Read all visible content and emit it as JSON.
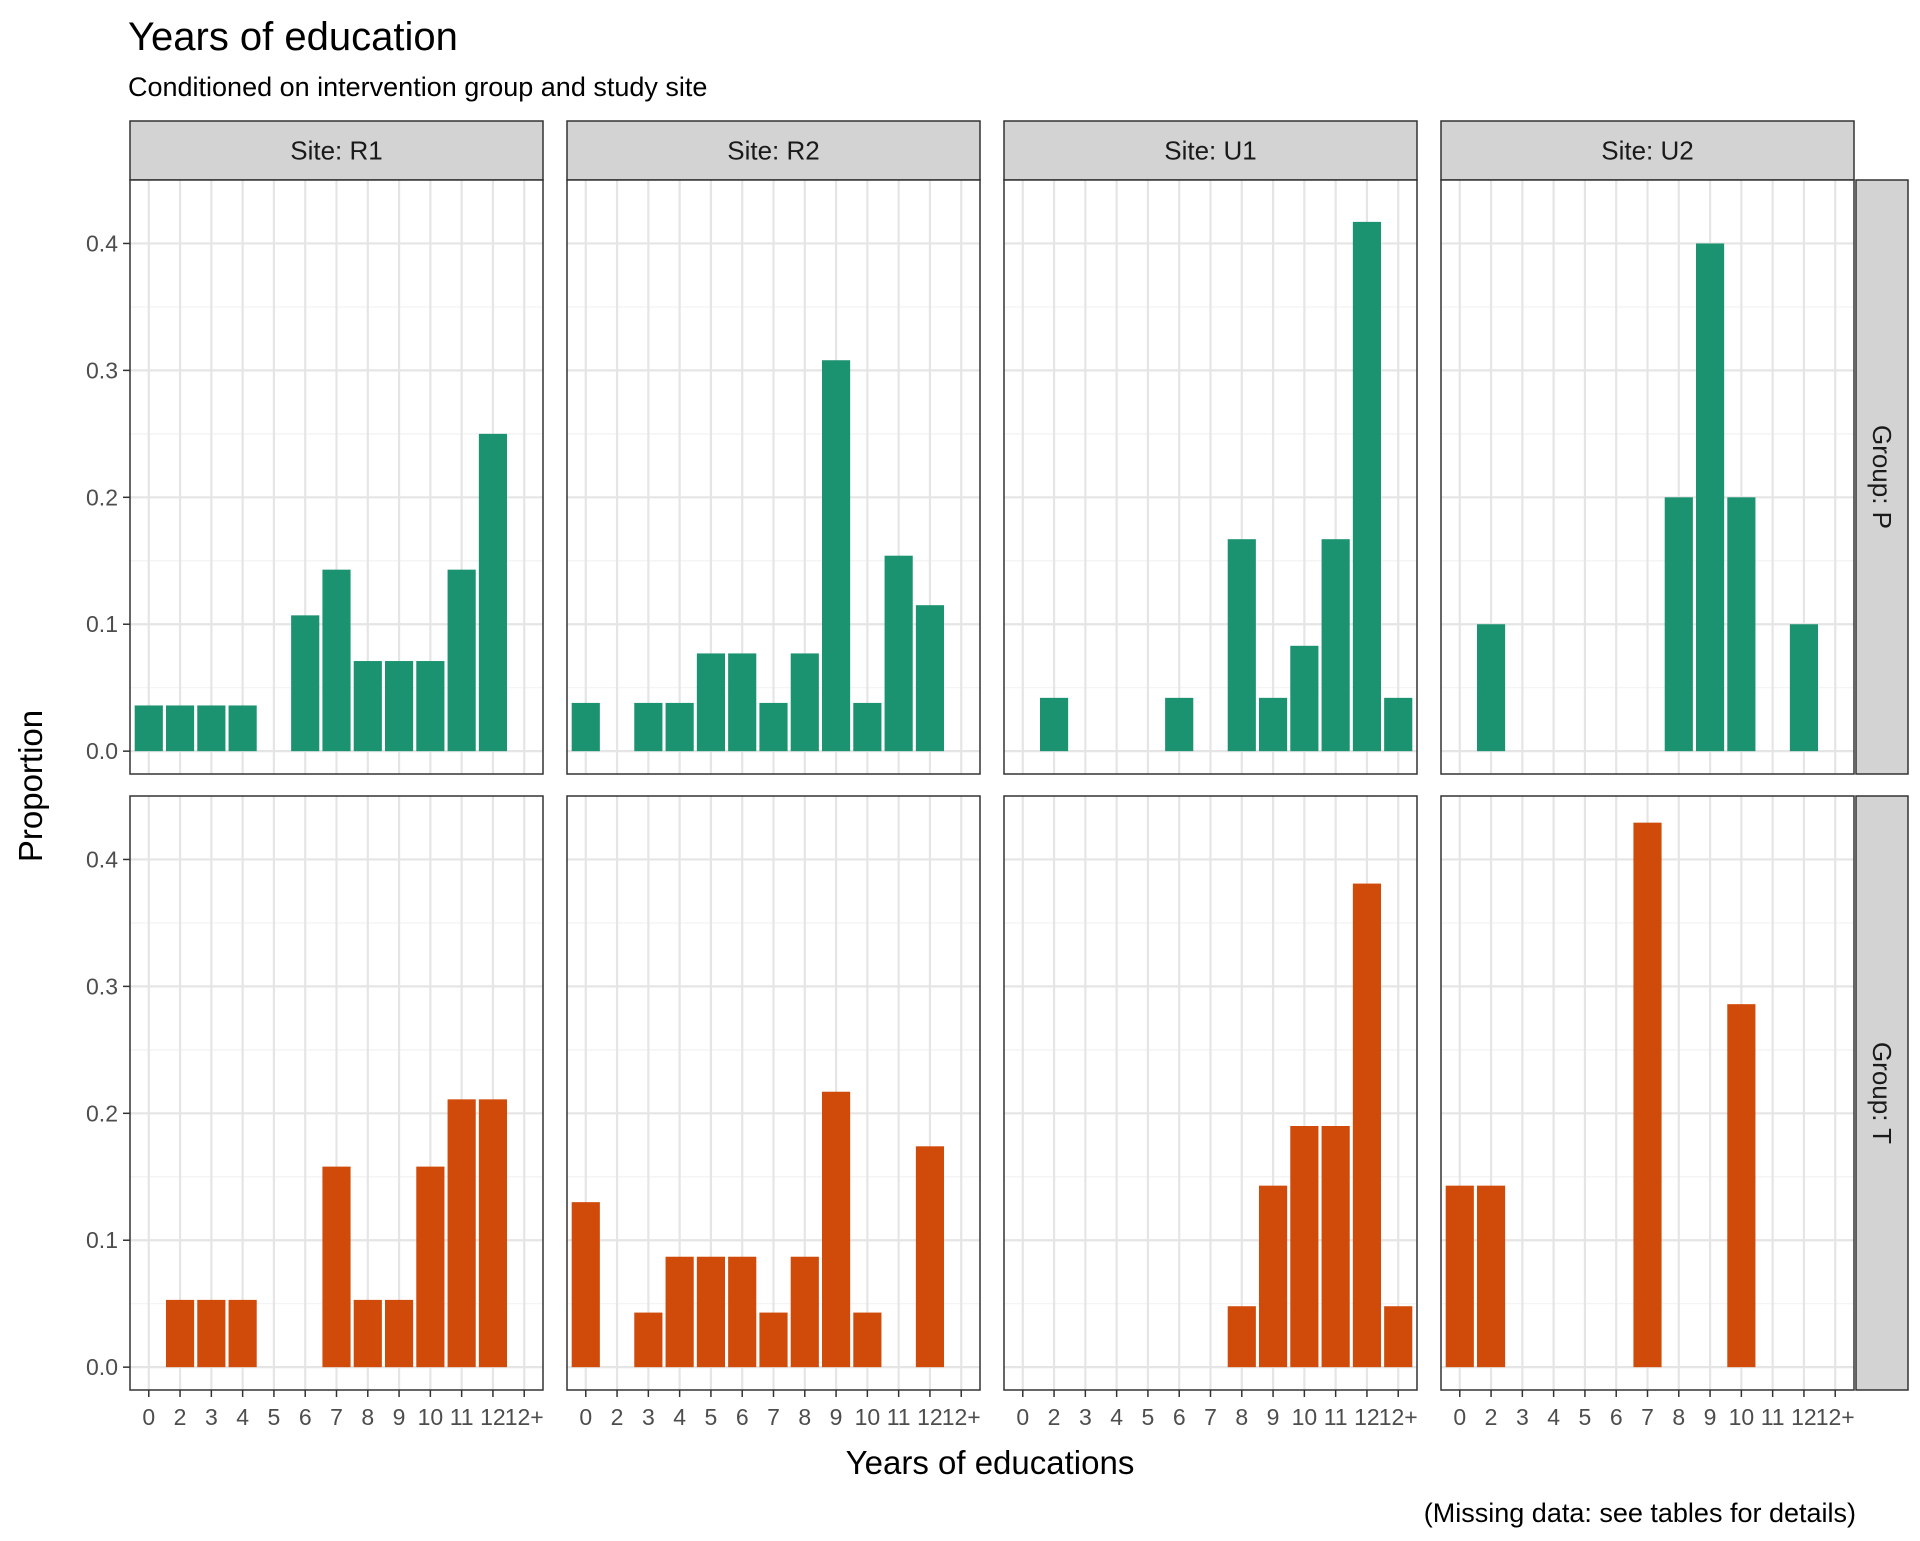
{
  "chart_data": {
    "type": "bar",
    "title": "Years of education",
    "subtitle": "Conditioned on intervention group and study site",
    "xlabel": "Years of educations",
    "ylabel": "Proportion",
    "caption": "(Missing data: see tables for details)",
    "categories": [
      "0",
      "2",
      "3",
      "4",
      "5",
      "6",
      "7",
      "8",
      "9",
      "10",
      "11",
      "12",
      "12+"
    ],
    "ylim": [
      -0.018,
      0.45
    ],
    "yticks": [
      0.0,
      0.1,
      0.2,
      0.3,
      0.4
    ],
    "ytick_labels": [
      "0.0",
      "0.1",
      "0.2",
      "0.3",
      "0.4"
    ],
    "grid": true,
    "theme": "black-and-white",
    "colors": {
      "P": "#1b9370",
      "T": "#d04a0a",
      "strip": "#d3d3d3",
      "grid_major": "#e5e5e5",
      "grid_minor": "#f2f2f2",
      "panel_border": "#333333"
    },
    "col_facets": [
      "Site: R1",
      "Site: R2",
      "Site: U1",
      "Site: U2"
    ],
    "row_facets": [
      "Group: P",
      "Group: T"
    ],
    "panels": [
      {
        "site": "Site: R1",
        "group": "Group: P",
        "values": [
          0.036,
          0.036,
          0.036,
          0.036,
          0,
          0.107,
          0.143,
          0.071,
          0.071,
          0.071,
          0.143,
          0.25,
          0
        ]
      },
      {
        "site": "Site: R2",
        "group": "Group: P",
        "values": [
          0.038,
          0,
          0.038,
          0.038,
          0.077,
          0.077,
          0.038,
          0.077,
          0.308,
          0.038,
          0.154,
          0.115,
          0
        ]
      },
      {
        "site": "Site: U1",
        "group": "Group: P",
        "values": [
          0,
          0.042,
          0,
          0,
          0,
          0.042,
          0,
          0.167,
          0.042,
          0.083,
          0.167,
          0.417,
          0.042
        ]
      },
      {
        "site": "Site: U2",
        "group": "Group: P",
        "values": [
          0,
          0.1,
          0,
          0,
          0,
          0,
          0,
          0.2,
          0.4,
          0.2,
          0,
          0.1,
          0
        ]
      },
      {
        "site": "Site: R1",
        "group": "Group: T",
        "values": [
          0,
          0.053,
          0.053,
          0.053,
          0,
          0,
          0.158,
          0.053,
          0.053,
          0.158,
          0.211,
          0.211,
          0
        ]
      },
      {
        "site": "Site: R2",
        "group": "Group: T",
        "values": [
          0.13,
          0,
          0.043,
          0.087,
          0.087,
          0.087,
          0.043,
          0.087,
          0.217,
          0.043,
          0,
          0.174,
          0
        ]
      },
      {
        "site": "Site: U1",
        "group": "Group: T",
        "values": [
          0,
          0,
          0,
          0,
          0,
          0,
          0,
          0.048,
          0.143,
          0.19,
          0.19,
          0.381,
          0.048
        ]
      },
      {
        "site": "Site: U2",
        "group": "Group: T",
        "values": [
          0.143,
          0.143,
          0,
          0,
          0,
          0,
          0.429,
          0,
          0,
          0.286,
          0,
          0,
          0
        ]
      }
    ]
  }
}
